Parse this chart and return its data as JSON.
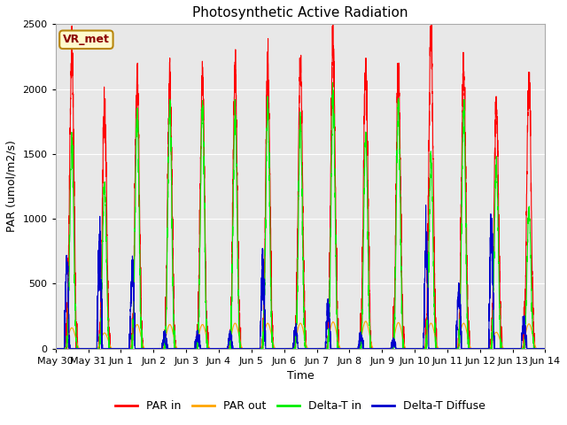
{
  "title": "Photosynthetic Active Radiation",
  "ylabel": "PAR (umol/m2/s)",
  "xlabel": "Time",
  "annotation": "VR_met",
  "ylim": [
    0,
    2500
  ],
  "xlim": [
    0,
    15
  ],
  "fig_bg": "#ffffff",
  "plot_bg": "#e8e8e8",
  "grid_color": "#ffffff",
  "legend": [
    {
      "label": "PAR in",
      "color": "#ff0000"
    },
    {
      "label": "PAR out",
      "color": "#ffa500"
    },
    {
      "label": "Delta-T in",
      "color": "#00ee00"
    },
    {
      "label": "Delta-T Diffuse",
      "color": "#0000cc"
    }
  ],
  "x_ticks_labels": [
    "May 30",
    "May 31",
    "Jun 1",
    "Jun 2",
    "Jun 3",
    "Jun 4",
    "Jun 5",
    "Jun 6",
    "Jun 7",
    "Jun 8",
    "Jun 9",
    "Jun 10",
    "Jun 11",
    "Jun 12",
    "Jun 13",
    "Jun 14"
  ],
  "x_ticks_pos": [
    0,
    1,
    2,
    3,
    4,
    5,
    6,
    7,
    8,
    9,
    10,
    11,
    12,
    13,
    14,
    15
  ],
  "day_peaks_PAR_in": [
    2270,
    1870,
    2070,
    2100,
    2100,
    2120,
    2160,
    2200,
    2380,
    2200,
    2160,
    2450,
    2140,
    1880,
    2060
  ],
  "day_peaks_PAR_out": [
    160,
    120,
    185,
    185,
    185,
    195,
    195,
    195,
    205,
    210,
    200,
    195,
    195,
    125,
    190
  ],
  "day_peaks_DeltaT_in": [
    1600,
    1280,
    1820,
    1860,
    1870,
    1820,
    1850,
    1740,
    1960,
    1640,
    1870,
    1450,
    1820,
    1400,
    1060
  ],
  "day_peaks_DeltaT_dif": [
    620,
    880,
    640,
    100,
    100,
    100,
    620,
    150,
    310,
    100,
    60,
    810,
    430,
    930,
    200
  ],
  "num_days": 15,
  "pts_per_day": 288
}
